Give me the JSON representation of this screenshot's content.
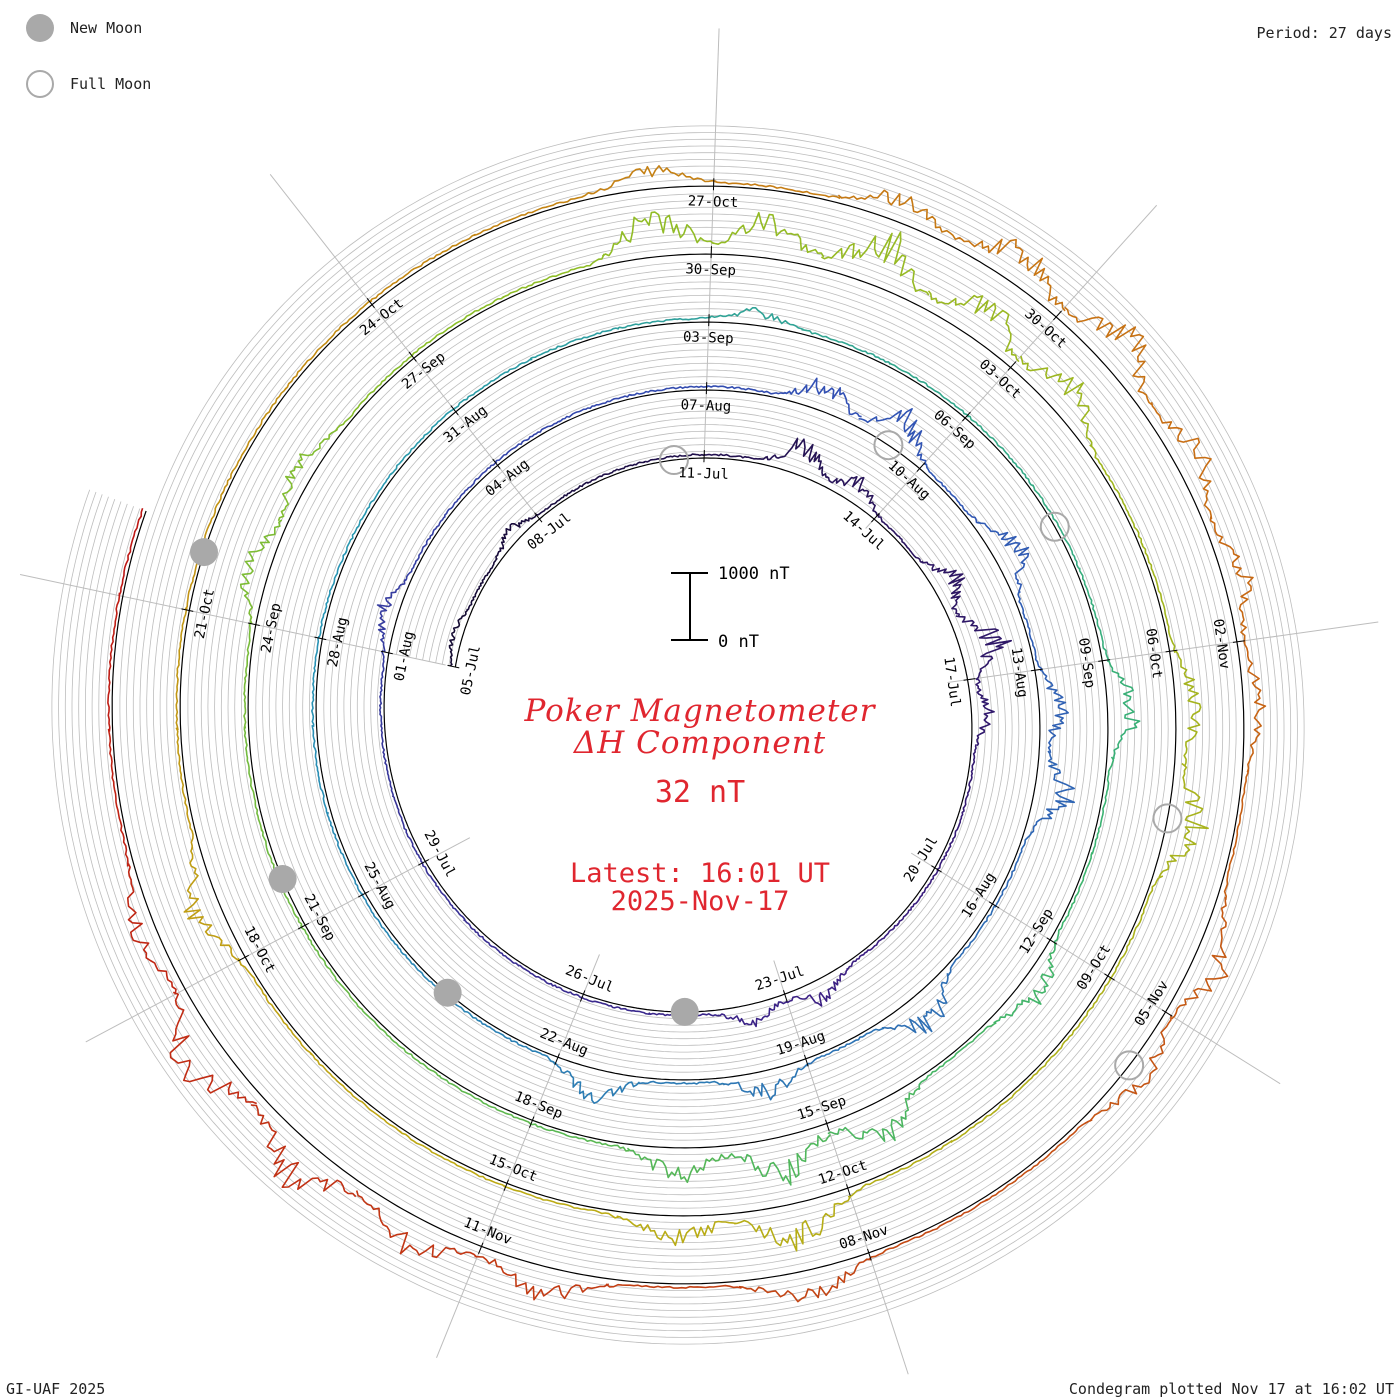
{
  "header": {
    "period_label": "Period: 27 days"
  },
  "legend": {
    "new_moon": "New Moon",
    "full_moon": "Full Moon"
  },
  "title": {
    "line1": "Poker Magnetometer",
    "line2": "ΔH Component",
    "value": "32 nT",
    "latest": "Latest: 16:01 UT",
    "date": "2025-Nov-17"
  },
  "scale_bar": {
    "top_label": "1000 nT",
    "bottom_label": "0 nT"
  },
  "footer": {
    "left": "GI-UAF 2025",
    "right": "Condegram plotted Nov 17 at 16:02 UT"
  },
  "colors": {
    "title": "#e0262f",
    "grid": "#bdbdbd",
    "baseline": "#000000",
    "moon": "#a9a9a9"
  },
  "chart_data": {
    "type": "condegram-spiral",
    "period_days": 27,
    "start_date": "2025-07-05",
    "end_date": "2025-11-17",
    "scale_nT": [
      0,
      1000
    ],
    "date_ticks": [
      "05-Jul",
      "08-Jul",
      "11-Jul",
      "14-Jul",
      "17-Jul",
      "20-Jul",
      "23-Jul",
      "26-Jul",
      "29-Jul",
      "01-Aug",
      "04-Aug",
      "07-Aug",
      "10-Aug",
      "13-Aug",
      "16-Aug",
      "19-Aug",
      "22-Aug",
      "25-Aug",
      "28-Aug",
      "31-Aug",
      "03-Sep",
      "06-Sep",
      "09-Sep",
      "12-Sep",
      "15-Sep",
      "18-Sep",
      "21-Sep",
      "24-Sep",
      "27-Sep",
      "30-Sep",
      "03-Oct",
      "06-Oct",
      "09-Oct",
      "12-Oct",
      "15-Oct",
      "18-Oct",
      "21-Oct",
      "24-Oct",
      "27-Oct",
      "30-Oct",
      "02-Nov",
      "05-Nov",
      "08-Nov",
      "11-Nov"
    ],
    "new_moons": [
      "2025-07-24",
      "2025-08-23",
      "2025-09-21",
      "2025-10-21"
    ],
    "full_moons": [
      "2025-07-10",
      "2025-08-09",
      "2025-09-07",
      "2025-10-07",
      "2025-11-05"
    ],
    "disturbances": [
      {
        "date": "2025-07-05",
        "peak_nT": 150
      },
      {
        "date": "2025-07-07",
        "peak_nT": 200
      },
      {
        "date": "2025-07-12",
        "peak_nT": 600
      },
      {
        "date": "2025-07-13",
        "peak_nT": 350
      },
      {
        "date": "2025-07-15",
        "peak_nT": 450
      },
      {
        "date": "2025-07-16",
        "peak_nT": 750
      },
      {
        "date": "2025-07-17",
        "peak_nT": 300
      },
      {
        "date": "2025-07-22",
        "peak_nT": 350
      },
      {
        "date": "2025-07-23",
        "peak_nT": 300
      },
      {
        "date": "2025-08-01",
        "peak_nT": 300
      },
      {
        "date": "2025-08-08",
        "peak_nT": 500
      },
      {
        "date": "2025-08-09",
        "peak_nT": 600
      },
      {
        "date": "2025-08-11",
        "peak_nT": 500
      },
      {
        "date": "2025-08-13",
        "peak_nT": 400
      },
      {
        "date": "2025-08-14",
        "peak_nT": 650
      },
      {
        "date": "2025-08-17",
        "peak_nT": 600
      },
      {
        "date": "2025-08-19",
        "peak_nT": 400
      },
      {
        "date": "2025-08-21",
        "peak_nT": 500
      },
      {
        "date": "2025-09-03",
        "peak_nT": 200
      },
      {
        "date": "2025-09-09",
        "peak_nT": 500
      },
      {
        "date": "2025-09-12",
        "peak_nT": 400
      },
      {
        "date": "2025-09-14",
        "peak_nT": 600
      },
      {
        "date": "2025-09-15",
        "peak_nT": 700
      },
      {
        "date": "2025-09-16",
        "peak_nT": 500
      },
      {
        "date": "2025-09-24",
        "peak_nT": 400
      },
      {
        "date": "2025-09-25",
        "peak_nT": 350
      },
      {
        "date": "2025-09-29",
        "peak_nT": 800
      },
      {
        "date": "2025-09-30",
        "peak_nT": 700
      },
      {
        "date": "2025-10-01",
        "peak_nT": 900
      },
      {
        "date": "2025-10-02",
        "peak_nT": 750
      },
      {
        "date": "2025-10-03",
        "peak_nT": 600
      },
      {
        "date": "2025-10-06",
        "peak_nT": 400
      },
      {
        "date": "2025-10-07",
        "peak_nT": 600
      },
      {
        "date": "2025-10-12",
        "peak_nT": 700
      },
      {
        "date": "2025-10-13",
        "peak_nT": 400
      },
      {
        "date": "2025-10-18",
        "peak_nT": 550
      },
      {
        "date": "2025-10-26",
        "peak_nT": 300
      },
      {
        "date": "2025-10-28",
        "peak_nT": 400
      },
      {
        "date": "2025-10-29",
        "peak_nT": 600
      },
      {
        "date": "2025-10-30",
        "peak_nT": 700
      },
      {
        "date": "2025-10-31",
        "peak_nT": 500
      },
      {
        "date": "2025-11-01",
        "peak_nT": 400
      },
      {
        "date": "2025-11-02",
        "peak_nT": 300
      },
      {
        "date": "2025-11-04",
        "peak_nT": 550
      },
      {
        "date": "2025-11-05",
        "peak_nT": 400
      },
      {
        "date": "2025-11-08",
        "peak_nT": 450
      },
      {
        "date": "2025-11-10",
        "peak_nT": 500
      },
      {
        "date": "2025-11-11",
        "peak_nT": 600
      },
      {
        "date": "2025-11-12",
        "peak_nT": 750
      },
      {
        "date": "2025-11-13",
        "peak_nT": 800
      },
      {
        "date": "2025-11-14",
        "peak_nT": 350
      }
    ]
  }
}
